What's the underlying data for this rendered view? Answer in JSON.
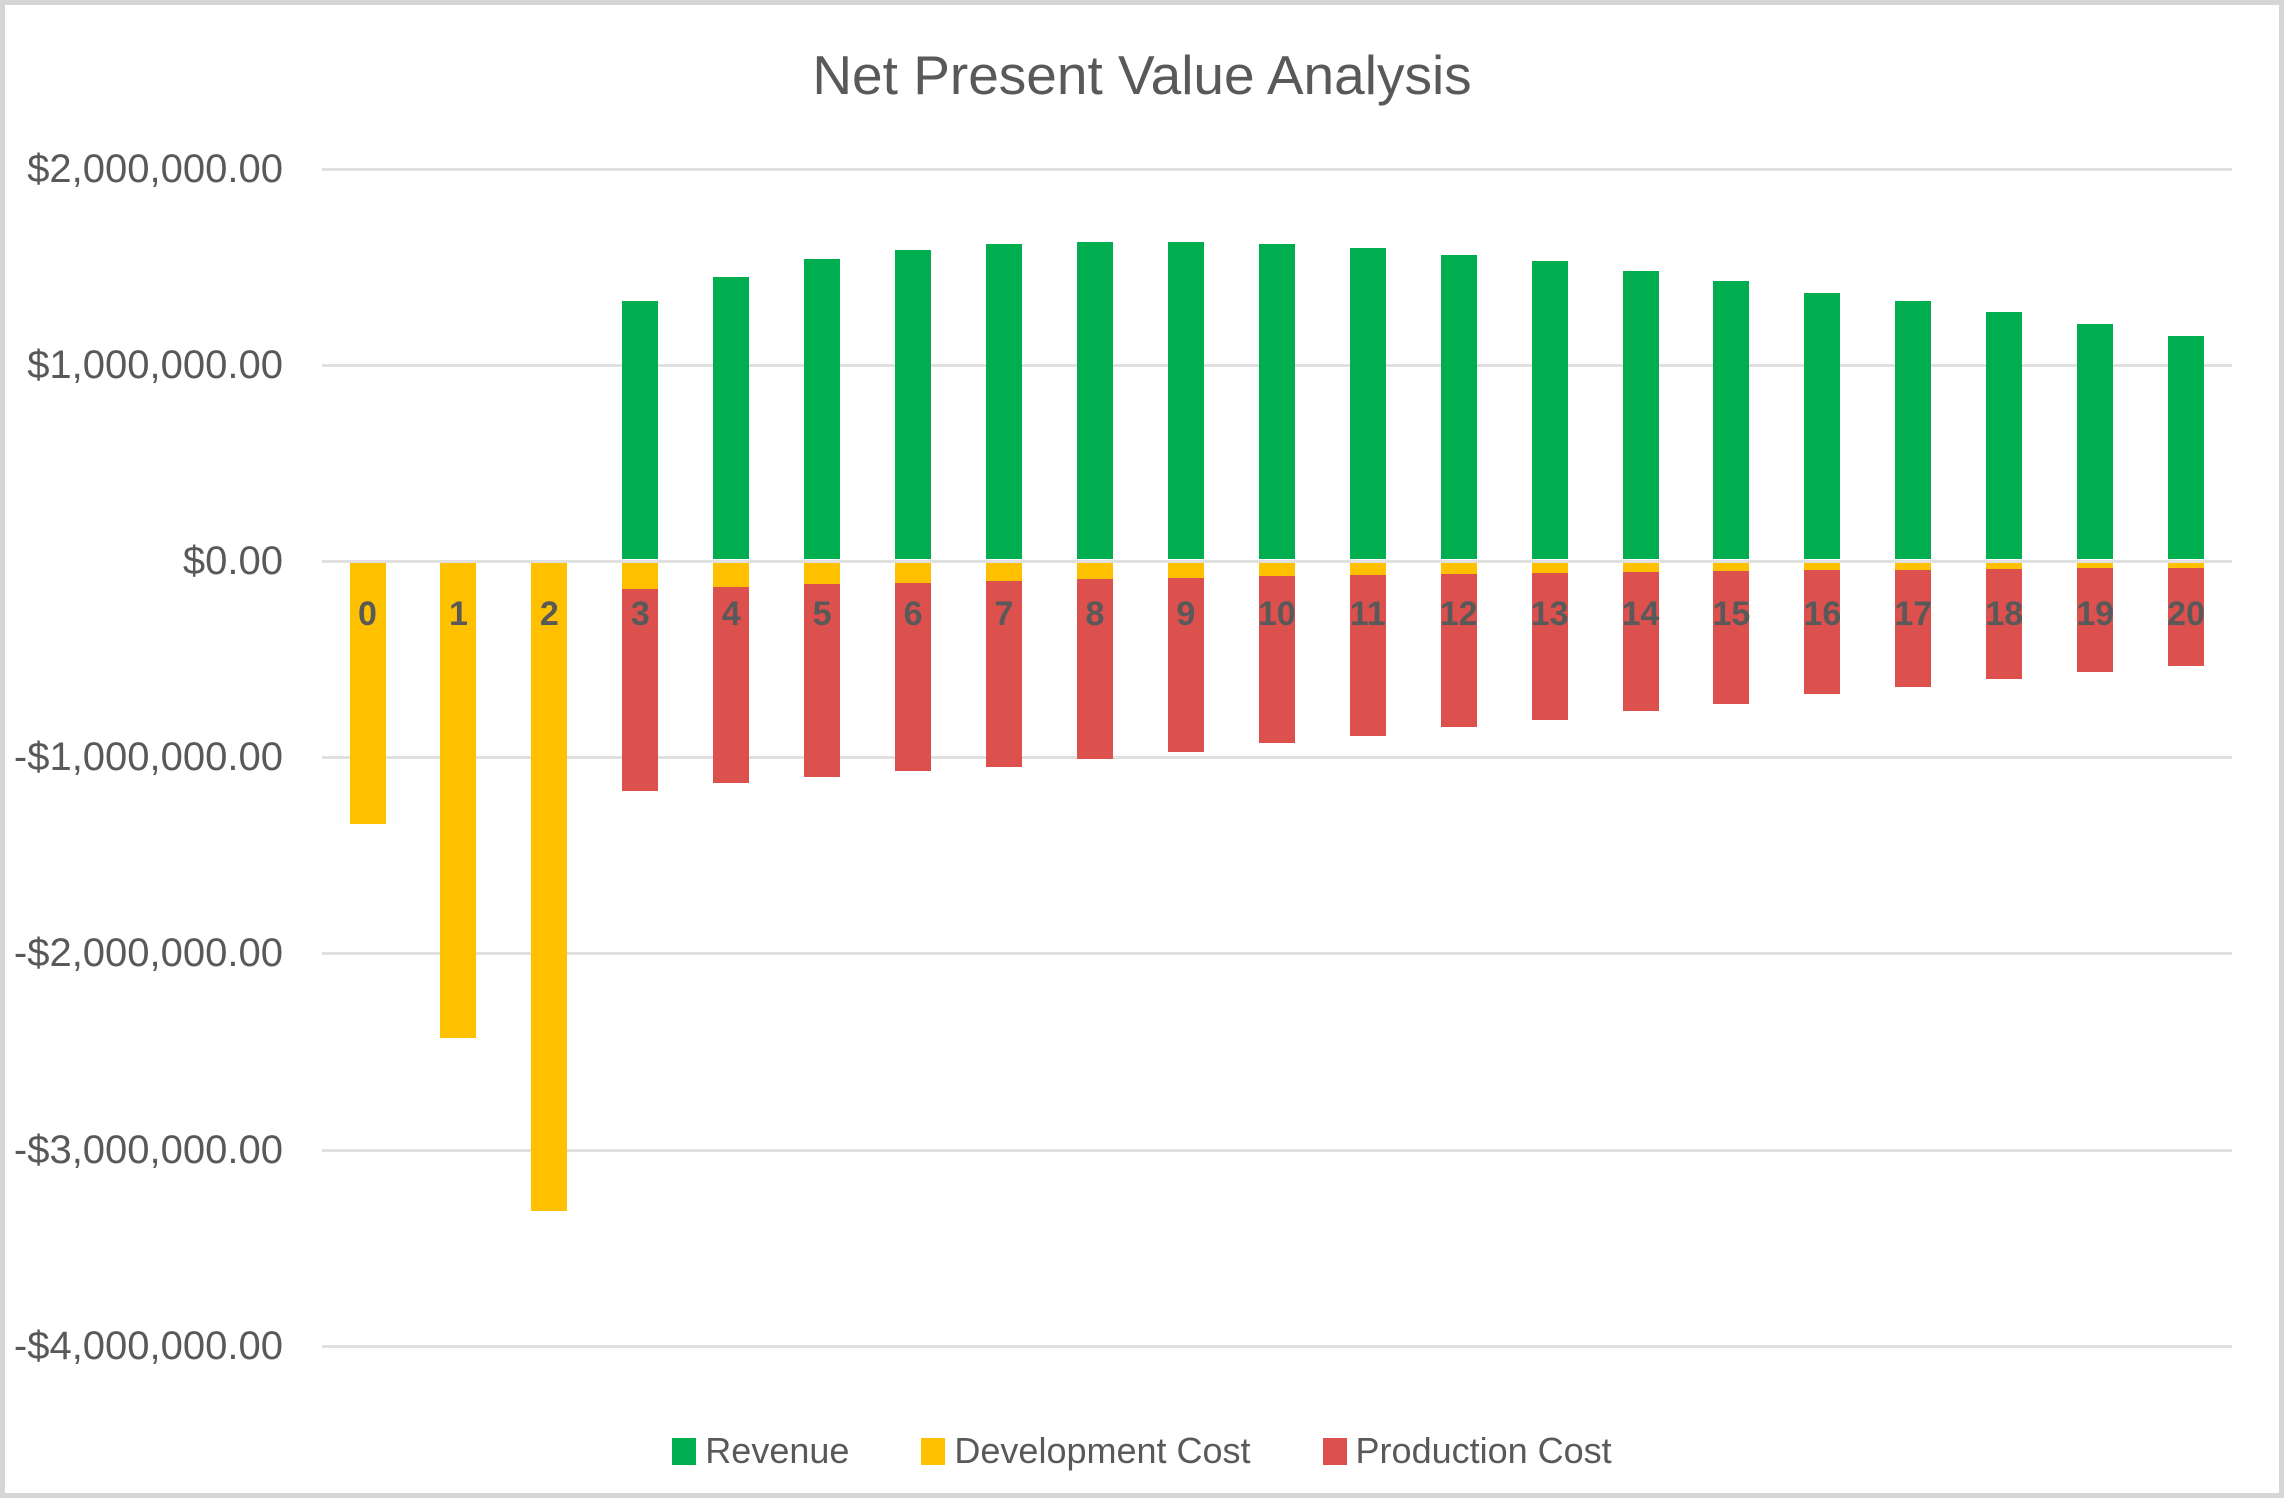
{
  "chart_data": {
    "type": "bar",
    "stacked": true,
    "title": "Net Present Value Analysis",
    "xlabel": "",
    "ylabel": "",
    "categories": [
      "0",
      "1",
      "2",
      "3",
      "4",
      "5",
      "6",
      "7",
      "8",
      "9",
      "10",
      "11",
      "12",
      "13",
      "14",
      "15",
      "16",
      "17",
      "18",
      "19",
      "20"
    ],
    "series": [
      {
        "name": "Revenue",
        "color": "#00AE50",
        "values": [
          0,
          0,
          0,
          1320000,
          1440000,
          1530000,
          1580000,
          1610000,
          1620000,
          1620000,
          1610000,
          1590000,
          1550000,
          1520000,
          1470000,
          1420000,
          1360000,
          1320000,
          1260000,
          1200000,
          1140000
        ]
      },
      {
        "name": "Development Cost",
        "color": "#FFC000",
        "values": [
          -1335000,
          -2425000,
          -3305000,
          -135000,
          -123000,
          -112000,
          -102000,
          -93000,
          -84000,
          -77000,
          -70000,
          -63000,
          -57000,
          -52000,
          -47000,
          -43000,
          -39000,
          -36000,
          -32000,
          -29000,
          -27000
        ]
      },
      {
        "name": "Production Cost",
        "color": "#DC514E",
        "values": [
          0,
          0,
          0,
          -1030000,
          -1000000,
          -980000,
          -960000,
          -950000,
          -920000,
          -890000,
          -850000,
          -820000,
          -780000,
          -750000,
          -710000,
          -680000,
          -630000,
          -600000,
          -560000,
          -530000,
          -500000
        ]
      }
    ],
    "y_axis": {
      "min": -4000000,
      "max": 2000000,
      "step": 1000000,
      "tick_labels": [
        "$2,000,000.00",
        "$1,000,000.00",
        "$0.00",
        "-$1,000,000.00",
        "-$2,000,000.00",
        "-$3,000,000.00",
        "-$4,000,000.00"
      ]
    },
    "grid": true,
    "legend_position": "bottom"
  }
}
